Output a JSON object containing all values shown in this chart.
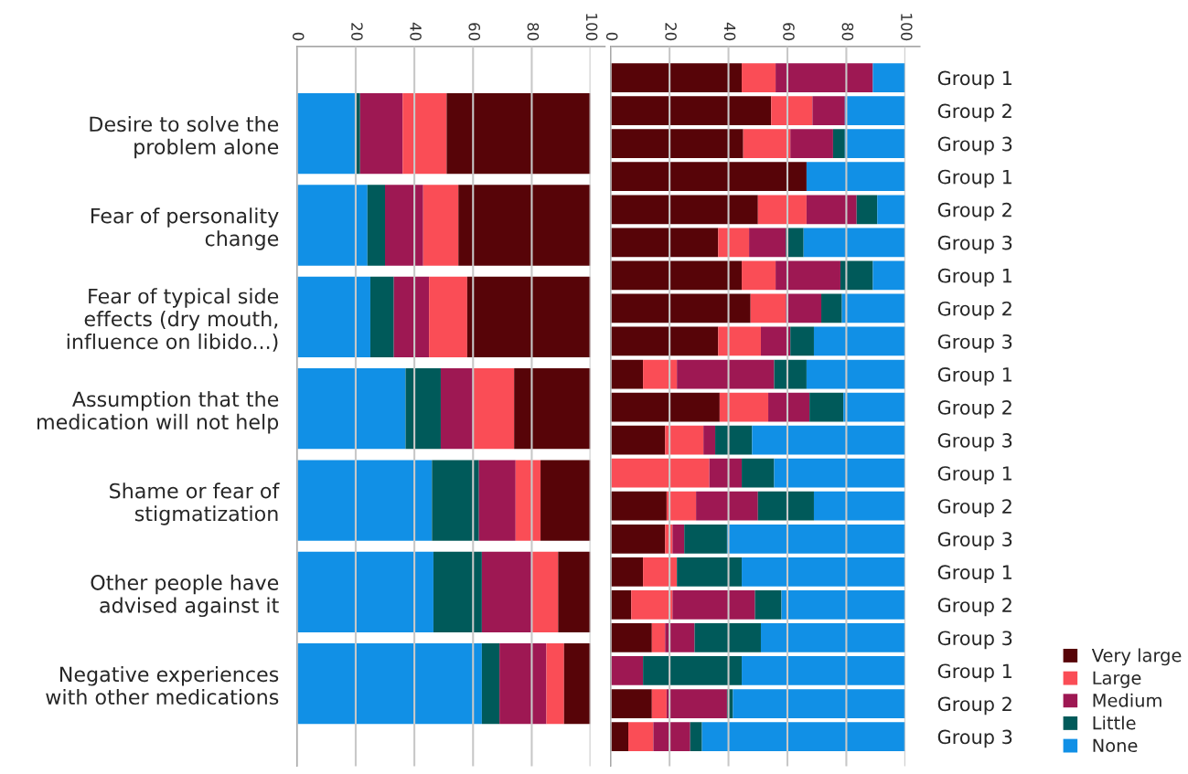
{
  "chart_data": [
    {
      "type": "bar",
      "orientation": "horizontal",
      "stacked": true,
      "legend": false,
      "grid": "x",
      "categories": [
        "Desire to solve the\nproblem alone",
        "Fear of personality\nchange",
        "Fear of typical side\neffects (dry mouth,\ninfluence on libido...)",
        "Assumption that the\nmedication will not help",
        "Shame or fear of\nstigmatization",
        "Other people have\nadvised against it",
        "Negative experiences\nwith other medications"
      ],
      "xlim": [
        0,
        100
      ],
      "xticks": [
        0,
        20,
        40,
        60,
        80,
        100
      ],
      "series": [
        {
          "color": "#1190e6",
          "values": [
            20,
            24,
            25,
            37,
            46,
            46.5,
            63
          ]
        },
        {
          "color": "#005a5a",
          "values": [
            1.5,
            6,
            8,
            12,
            16,
            16.5,
            6
          ]
        },
        {
          "color": "#9e1853",
          "values": [
            14.5,
            13,
            12,
            11,
            12.5,
            17,
            16
          ]
        },
        {
          "color": "#fa4d56",
          "values": [
            15,
            12,
            13,
            14,
            8.5,
            9,
            6
          ]
        },
        {
          "color": "#570408",
          "values": [
            49,
            45,
            42,
            26,
            17,
            11,
            9
          ]
        }
      ]
    },
    {
      "type": "bar",
      "orientation": "horizontal",
      "stacked": true,
      "legend": "bottom right",
      "grid": "x",
      "categories": [
        "Group 1",
        "Group 2",
        "Group 3",
        "Group 1",
        "Group 2",
        "Group 3",
        "Group 1",
        "Group 2",
        "Group 3",
        "Group 1",
        "Group 2",
        "Group 3",
        "Group 1",
        "Group 2",
        "Group 3",
        "Group 1",
        "Group 2",
        "Group 3",
        "Group 1",
        "Group 2",
        "Group 3"
      ],
      "xlim": [
        0,
        100
      ],
      "xticks": [
        0,
        20,
        40,
        60,
        80,
        100
      ],
      "series": [
        {
          "name": "Very large",
          "color": "#570408",
          "values": [
            44.5,
            54.5,
            45,
            66.5,
            50,
            36.5,
            44.5,
            47.5,
            36.5,
            11,
            37,
            18.5,
            0,
            19,
            18.5,
            11,
            7,
            14,
            0,
            14,
            6
          ]
        },
        {
          "name": "Large",
          "color": "#fa4d56",
          "values": [
            11.5,
            14,
            16,
            0,
            16.5,
            10.5,
            11.5,
            12,
            14.5,
            11.5,
            16.5,
            13,
            33.5,
            10,
            2.5,
            11.5,
            14,
            4.5,
            0,
            5,
            8.5
          ]
        },
        {
          "name": "Medium",
          "color": "#9e1853",
          "values": [
            33,
            11,
            14.5,
            0,
            17,
            12.5,
            22,
            12,
            10,
            33,
            14,
            4,
            11,
            21,
            4,
            0,
            28,
            10,
            11,
            20.5,
            12.5
          ]
        },
        {
          "name": "Little",
          "color": "#005a5a",
          "values": [
            0,
            0,
            4,
            0,
            7,
            6,
            11,
            7,
            8,
            11,
            11.5,
            12.5,
            11,
            19,
            14.5,
            22,
            9,
            22.5,
            33.5,
            2,
            4
          ]
        },
        {
          "name": "None",
          "color": "#1190e6",
          "values": [
            11,
            20.5,
            20.5,
            33.5,
            9.5,
            34.5,
            11,
            21.5,
            31,
            33.5,
            21,
            52,
            44.5,
            31,
            60.5,
            55.5,
            42,
            49,
            55.5,
            58.5,
            69
          ]
        }
      ]
    }
  ]
}
